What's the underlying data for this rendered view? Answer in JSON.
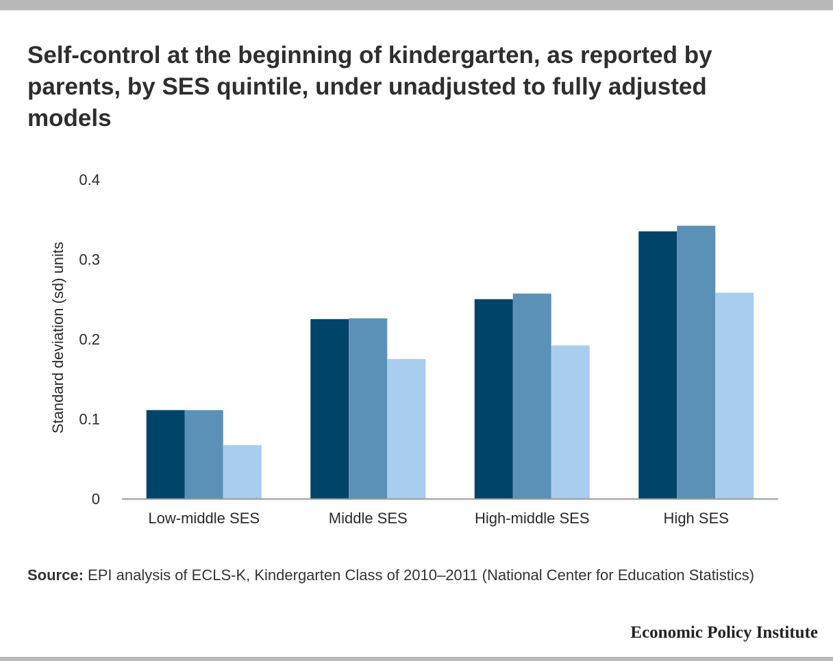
{
  "title": "Self-control at the beginning of kindergarten, as reported by parents, by SES quintile, under unadjusted to fully adjusted models",
  "source": {
    "lead": "Source:",
    "text": " EPI analysis of ECLS-K, Kindergarten Class of 2010–2011 (National Center for Education Statistics)"
  },
  "brand": "Economic Policy Institute",
  "colors": {
    "series_1": "#00446a",
    "series_2": "#5b91b6",
    "series_3": "#a9cdee",
    "baseline": "#9a9a9a"
  },
  "chart_data": {
    "type": "bar",
    "title": "Self-control at the beginning of kindergarten, as reported by parents, by SES quintile, under unadjusted to fully adjusted models",
    "xlabel": "",
    "ylabel": "Standard deviation (sd) units",
    "ylim": [
      0,
      0.4
    ],
    "yticks": [
      "0",
      "0.1",
      "0.2",
      "0.3",
      "0.4"
    ],
    "ytick_values": [
      0,
      0.1,
      0.2,
      0.3,
      0.4
    ],
    "grid": false,
    "legend": "none",
    "categories": [
      "Low-middle SES",
      "Middle SES",
      "High-middle SES",
      "High SES"
    ],
    "series": [
      {
        "values": [
          0.111,
          0.225,
          0.25,
          0.335
        ],
        "color": "#00446a"
      },
      {
        "values": [
          0.111,
          0.226,
          0.257,
          0.342
        ],
        "color": "#5b91b6"
      },
      {
        "values": [
          0.067,
          0.175,
          0.192,
          0.258
        ],
        "color": "#a9cdee"
      }
    ]
  }
}
